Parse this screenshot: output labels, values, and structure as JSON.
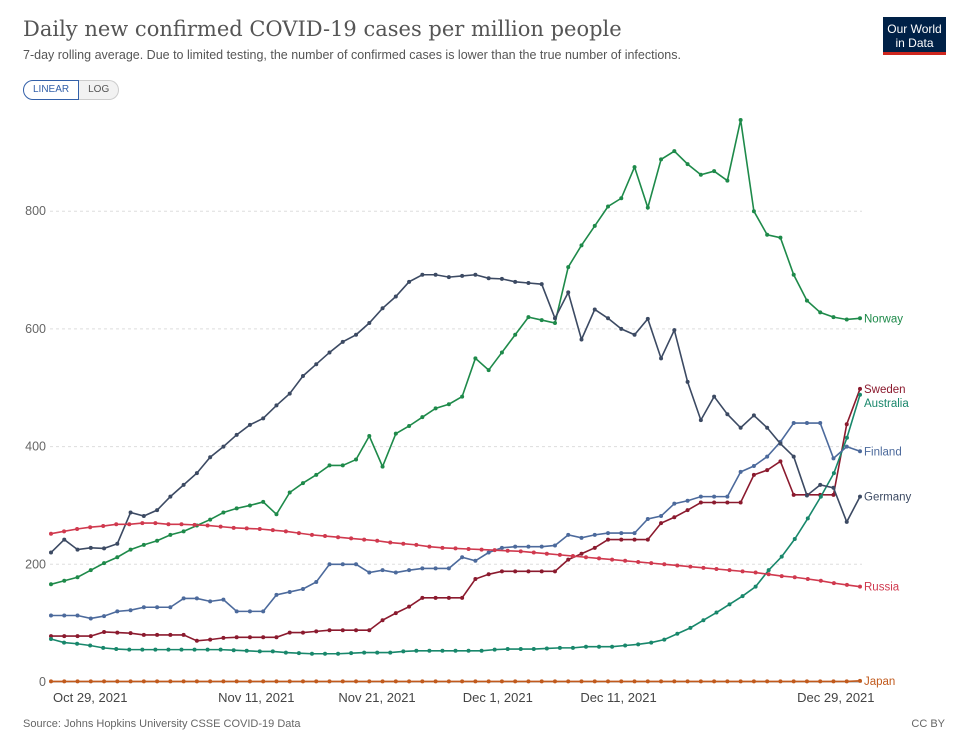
{
  "header": {
    "title": "Daily new confirmed COVID-19 cases per million people",
    "subtitle": "7-day rolling average. Due to limited testing, the number of confirmed cases is lower than the true number of infections.",
    "logo_line1": "Our World",
    "logo_line2": "in Data"
  },
  "controls": {
    "linear_label": "LINEAR",
    "log_label": "LOG",
    "selected": "LINEAR"
  },
  "footer": {
    "source": "Source: Johns Hopkins University CSSE COVID-19 Data",
    "license": "CC BY"
  },
  "chart_data": {
    "type": "line",
    "title": "Daily new confirmed COVID-19 cases per million people",
    "xlabel": "",
    "ylabel": "",
    "ylim": [
      0,
      960
    ],
    "yticks": [
      0,
      200,
      400,
      600,
      800
    ],
    "grid": true,
    "x_start": "2021-10-25",
    "x_end": "2021-12-31",
    "xtick_labels": [
      "Oct 29, 2021",
      "Nov 11, 2021",
      "Nov 21, 2021",
      "Dec 1, 2021",
      "Dec 11, 2021",
      "Dec 29, 2021"
    ],
    "series": [
      {
        "name": "Norway",
        "color": "#1e8a4a",
        "values": [
          166,
          172,
          178,
          190,
          202,
          212,
          225,
          233,
          240,
          250,
          256,
          266,
          276,
          288,
          295,
          300,
          306,
          285,
          322,
          338,
          352,
          368,
          368,
          378,
          418,
          366,
          422,
          435,
          450,
          465,
          472,
          485,
          550,
          530,
          560,
          590,
          620,
          615,
          610,
          705,
          742,
          775,
          808,
          822,
          875,
          806,
          888,
          902,
          880,
          862,
          868,
          852,
          955,
          800,
          760,
          755,
          692,
          648,
          628,
          620,
          616,
          618
        ]
      },
      {
        "name": "Sweden",
        "color": "#8b1a2e",
        "values": [
          78,
          78,
          78,
          78,
          85,
          84,
          83,
          80,
          80,
          80,
          80,
          70,
          72,
          75,
          76,
          76,
          76,
          76,
          84,
          84,
          86,
          88,
          88,
          88,
          88,
          105,
          117,
          128,
          143,
          143,
          143,
          143,
          175,
          183,
          188,
          188,
          188,
          188,
          188,
          208,
          218,
          228,
          242,
          242,
          242,
          242,
          270,
          280,
          292,
          305,
          305,
          305,
          305,
          352,
          360,
          375,
          318,
          318,
          318,
          318,
          438,
          498
        ]
      },
      {
        "name": "Australia",
        "color": "#18876b",
        "values": [
          73,
          67,
          65,
          62,
          58,
          56,
          55,
          55,
          55,
          55,
          55,
          55,
          55,
          55,
          54,
          53,
          52,
          52,
          50,
          49,
          48,
          48,
          48,
          49,
          50,
          50,
          50,
          52,
          53,
          53,
          53,
          53,
          53,
          53,
          55,
          56,
          56,
          56,
          57,
          58,
          58,
          60,
          60,
          60,
          62,
          64,
          67,
          72,
          82,
          92,
          105,
          118,
          132,
          146,
          162,
          190,
          213,
          243,
          278,
          315,
          355,
          415,
          488
        ]
      },
      {
        "name": "Finland",
        "color": "#4c6a9c",
        "values": [
          113,
          113,
          113,
          108,
          112,
          120,
          122,
          127,
          127,
          127,
          142,
          142,
          137,
          140,
          120,
          120,
          120,
          148,
          153,
          158,
          170,
          200,
          200,
          200,
          186,
          190,
          186,
          190,
          193,
          193,
          193,
          212,
          206,
          220,
          228,
          230,
          230,
          230,
          232,
          250,
          245,
          250,
          253,
          253,
          253,
          277,
          282,
          303,
          308,
          315,
          315,
          315,
          357,
          367,
          383,
          408,
          440,
          440,
          440,
          380,
          400,
          392
        ]
      },
      {
        "name": "Germany",
        "color": "#3c4a63",
        "values": [
          220,
          242,
          225,
          228,
          227,
          235,
          288,
          282,
          292,
          315,
          335,
          355,
          382,
          400,
          420,
          437,
          448,
          470,
          490,
          520,
          540,
          560,
          578,
          590,
          610,
          635,
          655,
          680,
          692,
          692,
          688,
          690,
          692,
          686,
          685,
          680,
          678,
          676,
          618,
          662,
          582,
          633,
          618,
          600,
          590,
          617,
          550,
          598,
          510,
          445,
          485,
          455,
          432,
          453,
          432,
          405,
          383,
          317,
          335,
          330,
          272,
          315
        ]
      },
      {
        "name": "Russia",
        "color": "#d0394e",
        "values": [
          252,
          256,
          260,
          263,
          265,
          268,
          268,
          270,
          270,
          268,
          268,
          267,
          266,
          264,
          262,
          261,
          260,
          258,
          256,
          253,
          250,
          248,
          246,
          244,
          242,
          240,
          237,
          235,
          233,
          230,
          228,
          227,
          226,
          225,
          224,
          223,
          222,
          220,
          218,
          216,
          214,
          212,
          210,
          208,
          206,
          204,
          202,
          200,
          198,
          196,
          194,
          192,
          190,
          188,
          186,
          183,
          180,
          178,
          175,
          172,
          168,
          165,
          162
        ]
      },
      {
        "name": "Japan",
        "color": "#c15a1d",
        "values": [
          1,
          1,
          1,
          1,
          1,
          1,
          1,
          1,
          1,
          1,
          1,
          1,
          1,
          1,
          1,
          1,
          1,
          1,
          1,
          1,
          1,
          1,
          1,
          1,
          1,
          1,
          1,
          1,
          1,
          1,
          1,
          1,
          1,
          1,
          1,
          1,
          1,
          1,
          1,
          1,
          1,
          1,
          1,
          1,
          1,
          1,
          1,
          1,
          1,
          1,
          1,
          1,
          1,
          1,
          1,
          1,
          1,
          1,
          1,
          1,
          1,
          2
        ]
      }
    ]
  }
}
